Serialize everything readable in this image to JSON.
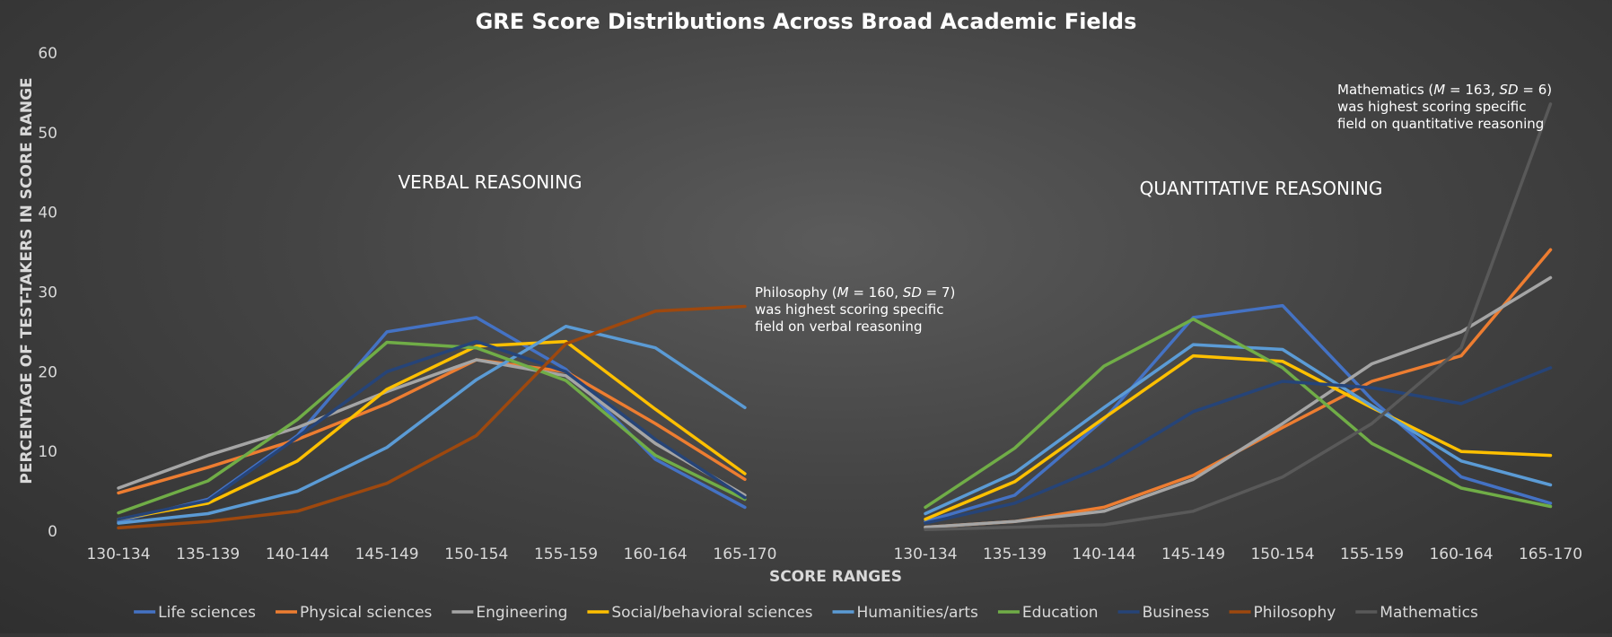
{
  "chart_data": {
    "type": "line",
    "title": "GRE Score Distributions Across Broad Academic Fields",
    "xlabel": "SCORE RANGES",
    "ylabel": "PERCENTAGE OF TEST-TAKERS IN SCORE RANGE",
    "ylim": [
      0,
      60
    ],
    "yticks": [
      0,
      10,
      20,
      30,
      40,
      50,
      60
    ],
    "grid": false,
    "legend_position": "bottom",
    "categories": [
      "130-134",
      "135-139",
      "140-144",
      "145-149",
      "150-154",
      "155-159",
      "160-164",
      "165-170"
    ],
    "panels": [
      {
        "label": "VERBAL REASONING",
        "series": [
          {
            "name": "Life sciences",
            "color": "#4472C4",
            "values": [
              1.2,
              4.0,
              12.0,
              25.0,
              26.8,
              20.3,
              9.0,
              3.0
            ]
          },
          {
            "name": "Physical sciences",
            "color": "#ED7D31",
            "values": [
              4.8,
              8.0,
              11.5,
              16.0,
              21.5,
              20.0,
              13.5,
              6.5
            ]
          },
          {
            "name": "Engineering",
            "color": "#A5A5A5",
            "values": [
              5.4,
              9.5,
              13.0,
              17.5,
              21.5,
              19.5,
              11.0,
              4.5
            ]
          },
          {
            "name": "Social/behavioral sciences",
            "color": "#FFC000",
            "values": [
              1.5,
              3.5,
              8.8,
              17.8,
              23.2,
              23.8,
              15.3,
              7.2
            ]
          },
          {
            "name": "Humanities/arts",
            "color": "#5B9BD5",
            "values": [
              1.0,
              2.2,
              5.0,
              10.5,
              19.0,
              25.7,
              23.0,
              15.5
            ]
          },
          {
            "name": "Education",
            "color": "#70AD47",
            "values": [
              2.3,
              6.3,
              14.0,
              23.7,
              23.0,
              18.9,
              9.5,
              4.0
            ]
          },
          {
            "name": "Business",
            "color": "#264478",
            "values": [
              1.5,
              3.8,
              11.8,
              20.0,
              23.8,
              20.0,
              11.5,
              4.2
            ]
          },
          {
            "name": "Philosophy",
            "color": "#9E480E",
            "values": [
              0.4,
              1.2,
              2.5,
              6.0,
              12.0,
              23.5,
              27.6,
              28.2
            ]
          }
        ],
        "annotation": {
          "lines": [
            [
              "Philosophy (",
              "M",
              " = 160, ",
              "SD",
              " = 7)"
            ],
            [
              "was highest scoring specific"
            ],
            [
              "field on verbal reasoning"
            ]
          ]
        }
      },
      {
        "label": "QUANTITATIVE REASONING",
        "series": [
          {
            "name": "Life sciences",
            "color": "#4472C4",
            "values": [
              1.2,
              4.5,
              14.0,
              26.8,
              28.3,
              16.5,
              6.8,
              3.5
            ]
          },
          {
            "name": "Physical sciences",
            "color": "#ED7D31",
            "values": [
              0.5,
              1.2,
              3.0,
              7.0,
              13.0,
              18.8,
              22.0,
              35.3
            ]
          },
          {
            "name": "Engineering",
            "color": "#A5A5A5",
            "values": [
              0.5,
              1.2,
              2.5,
              6.5,
              13.5,
              21.0,
              25.0,
              31.8
            ]
          },
          {
            "name": "Social/behavioral sciences",
            "color": "#FFC000",
            "values": [
              1.5,
              6.2,
              14.2,
              22.0,
              21.3,
              15.5,
              10.0,
              9.5
            ]
          },
          {
            "name": "Humanities/arts",
            "color": "#5B9BD5",
            "values": [
              2.2,
              7.3,
              15.5,
              23.4,
              22.8,
              15.7,
              8.8,
              5.8
            ]
          },
          {
            "name": "Education",
            "color": "#70AD47",
            "values": [
              3.0,
              10.4,
              20.7,
              26.6,
              20.5,
              11.0,
              5.4,
              3.1
            ]
          },
          {
            "name": "Business",
            "color": "#264478",
            "values": [
              1.0,
              3.5,
              8.2,
              15.0,
              18.8,
              18.0,
              16.0,
              20.5
            ]
          },
          {
            "name": "Mathematics",
            "color": "#595959",
            "values": [
              0.2,
              0.5,
              0.8,
              2.5,
              6.8,
              13.5,
              23.0,
              53.6
            ]
          }
        ],
        "annotation": {
          "lines": [
            [
              "Mathematics (",
              "M",
              " = 163, ",
              "SD",
              " = 6)"
            ],
            [
              "was highest scoring specific"
            ],
            [
              "field on quantitative reasoning"
            ]
          ]
        }
      }
    ],
    "legend": [
      {
        "name": "Life sciences",
        "color": "#4472C4"
      },
      {
        "name": "Physical sciences",
        "color": "#ED7D31"
      },
      {
        "name": "Engineering",
        "color": "#A5A5A5"
      },
      {
        "name": "Social/behavioral sciences",
        "color": "#FFC000"
      },
      {
        "name": "Humanities/arts",
        "color": "#5B9BD5"
      },
      {
        "name": "Education",
        "color": "#70AD47"
      },
      {
        "name": "Business",
        "color": "#264478"
      },
      {
        "name": "Philosophy",
        "color": "#9E480E"
      },
      {
        "name": "Mathematics",
        "color": "#595959"
      }
    ]
  }
}
